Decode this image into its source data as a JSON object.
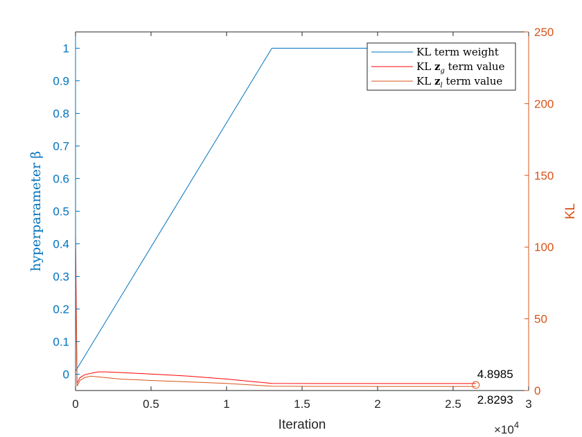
{
  "chart_data": {
    "type": "line",
    "xlabel": "Iteration",
    "x_exponent_label": "×10",
    "x_exponent_power": "4",
    "xlim": [
      0,
      3
    ],
    "xticks": [
      0,
      0.5,
      1,
      1.5,
      2,
      2.5,
      3
    ],
    "xtick_labels": [
      "0",
      "0.5",
      "1",
      "1.5",
      "2",
      "2.5",
      "3"
    ],
    "y_left": {
      "label": "hyperparameter β",
      "lim": [
        -0.05,
        1.05
      ],
      "ticks": [
        0,
        0.1,
        0.2,
        0.3,
        0.4,
        0.5,
        0.6,
        0.7,
        0.8,
        0.9,
        1
      ],
      "tick_labels": [
        "0",
        "0.1",
        "0.2",
        "0.3",
        "0.4",
        "0.5",
        "0.6",
        "0.7",
        "0.8",
        "0.9",
        "1"
      ],
      "color": "#0072BD"
    },
    "y_right": {
      "label": "KL",
      "lim": [
        0,
        250
      ],
      "ticks": [
        0,
        50,
        100,
        150,
        200,
        250
      ],
      "tick_labels": [
        "0",
        "50",
        "100",
        "150",
        "200",
        "250"
      ],
      "color": "#D95319"
    },
    "series": [
      {
        "name": "KL term weight",
        "color": "#0072BD",
        "axis": "left",
        "x": [
          0,
          0.0005,
          0.001,
          1.3,
          2.65
        ],
        "y": [
          0.94,
          0.01,
          0.01,
          1.0,
          1.0
        ]
      },
      {
        "name": "KL z_g term value",
        "color": "#FF0000",
        "axis": "right",
        "x": [
          0,
          0.01,
          0.03,
          0.06,
          0.1,
          0.15,
          0.2,
          0.3,
          0.5,
          0.75,
          1.0,
          1.3,
          1.6,
          2.0,
          2.4,
          2.65
        ],
        "y": [
          110,
          5,
          9,
          11,
          12,
          13,
          13,
          12.5,
          11.5,
          10,
          8,
          5,
          4.9,
          4.9,
          4.9,
          4.8985
        ]
      },
      {
        "name": "KL z_l term value",
        "color": "#D95319",
        "axis": "right",
        "x": [
          0,
          0.01,
          0.03,
          0.06,
          0.1,
          0.2,
          0.3,
          0.5,
          0.75,
          1.0,
          1.3,
          1.6,
          2.0,
          2.4,
          2.65
        ],
        "y": [
          85,
          3,
          7,
          9,
          10,
          9,
          8,
          7,
          6,
          5,
          3,
          2.9,
          2.85,
          2.83,
          2.8293
        ]
      }
    ],
    "legend": {
      "placement": "top-right",
      "entries": [
        {
          "prefix": "KL",
          "sym": "",
          "sub": "",
          "suffix": " term weight"
        },
        {
          "prefix": "KL ",
          "sym": "z",
          "sub": "g",
          "suffix": " term value"
        },
        {
          "prefix": "KL ",
          "sym": "z",
          "sub": "l",
          "suffix": " term value"
        }
      ]
    },
    "annotations": [
      {
        "text": "4.8985",
        "x": 2.65,
        "y": 4.8985,
        "axis": "right",
        "position": "above"
      },
      {
        "text": "2.8293",
        "x": 2.65,
        "y": 2.8293,
        "axis": "right",
        "position": "below"
      }
    ],
    "end_marker": {
      "x": 2.65,
      "y": 3.86,
      "axis": "right",
      "color": "#D95319"
    }
  }
}
